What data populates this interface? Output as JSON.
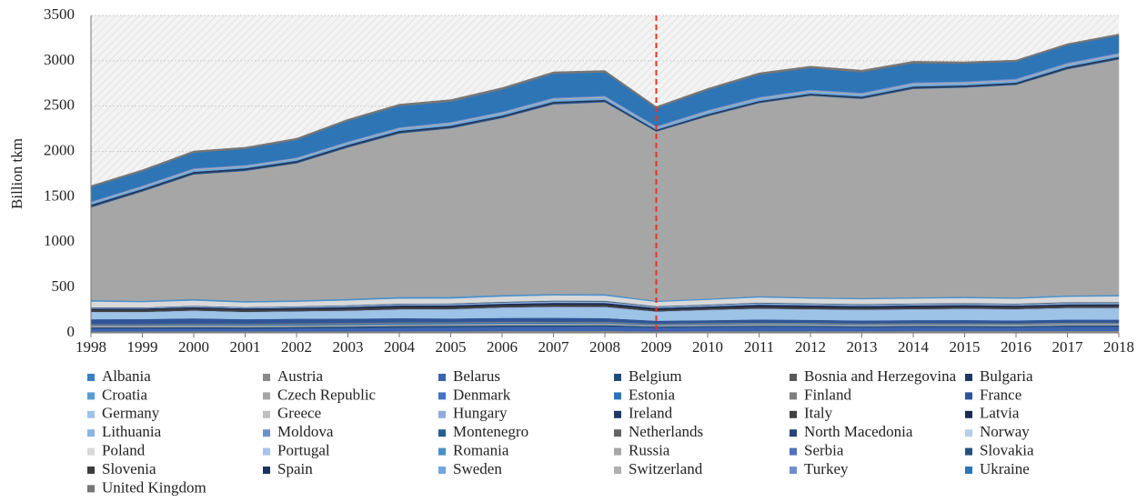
{
  "chart_data": {
    "type": "stacked_area",
    "y_label": "Billion tkm",
    "x": [
      1998,
      1999,
      2000,
      2001,
      2002,
      2003,
      2004,
      2005,
      2006,
      2007,
      2008,
      2009,
      2010,
      2011,
      2012,
      2013,
      2014,
      2015,
      2016,
      2017,
      2018
    ],
    "xlim": [
      1998,
      2018
    ],
    "xticks": [
      1998,
      1999,
      2000,
      2001,
      2002,
      2003,
      2004,
      2005,
      2006,
      2007,
      2008,
      2009,
      2010,
      2011,
      2012,
      2013,
      2014,
      2015,
      2016,
      2017,
      2018
    ],
    "ylim": [
      0,
      3500
    ],
    "yticks": [
      0,
      500,
      1000,
      1500,
      2000,
      2500,
      3000,
      3500
    ],
    "grid": true,
    "legend": "bottom",
    "vline": {
      "x": 2009,
      "color": "#e8312a"
    },
    "series": [
      {
        "name": "Albania",
        "color": "#3a7fc1",
        "values": [
          0.4,
          0.4,
          0.5,
          0.5,
          0.5,
          0.4,
          0.4,
          0.5,
          0.5,
          0.5,
          0.5,
          0.4,
          0.4,
          0.3,
          0.3,
          0.2,
          0.2,
          0.2,
          0.2,
          0.2,
          0.2
        ]
      },
      {
        "name": "Austria",
        "color": "#8a8a8a",
        "values": [
          15,
          16,
          17,
          17,
          17,
          17,
          18,
          19,
          21,
          21,
          22,
          17,
          19,
          20,
          20,
          19,
          21,
          21,
          21,
          22,
          22
        ]
      },
      {
        "name": "Belarus",
        "color": "#3b63b0",
        "values": [
          31,
          31,
          32,
          30,
          34,
          38,
          43,
          44,
          46,
          48,
          49,
          43,
          47,
          49,
          48,
          43,
          45,
          43,
          41,
          48,
          48
        ]
      },
      {
        "name": "Belgium",
        "color": "#1f4e79",
        "values": [
          8,
          8,
          8,
          8,
          8,
          8,
          9,
          9,
          9,
          8,
          8,
          6,
          6,
          7,
          7,
          7,
          7,
          7,
          7,
          7,
          7
        ]
      },
      {
        "name": "Bosnia and Herzegovina",
        "color": "#595959",
        "values": [
          0.5,
          0.5,
          1,
          1,
          1,
          1,
          1,
          1,
          1,
          1,
          1,
          1,
          1,
          1,
          1,
          1,
          1,
          1,
          1,
          1,
          1
        ]
      },
      {
        "name": "Bulgaria",
        "color": "#1f3864",
        "values": [
          6,
          5,
          5,
          5,
          5,
          5,
          5,
          5,
          5,
          5,
          5,
          3,
          3,
          3,
          3,
          3,
          3,
          4,
          4,
          4,
          4
        ]
      },
      {
        "name": "Croatia",
        "color": "#5b9bd5",
        "values": [
          2,
          2,
          2,
          2,
          2,
          2,
          2,
          3,
          3,
          3,
          3,
          2,
          2,
          2,
          2,
          2,
          2,
          2,
          2,
          2,
          2
        ]
      },
      {
        "name": "Czech Republic",
        "color": "#a5a5a5",
        "values": [
          17,
          17,
          17,
          17,
          16,
          16,
          15,
          15,
          16,
          16,
          16,
          13,
          14,
          15,
          15,
          14,
          15,
          16,
          16,
          16,
          16
        ]
      },
      {
        "name": "Denmark",
        "color": "#4472c4",
        "values": [
          2,
          2,
          2,
          2,
          2,
          2,
          2,
          2,
          2,
          2,
          2,
          2,
          2,
          2,
          2,
          2,
          2,
          2,
          2,
          2,
          2
        ]
      },
      {
        "name": "Estonia",
        "color": "#2e75b6",
        "values": [
          4,
          6,
          8,
          8,
          10,
          10,
          10,
          10,
          10,
          8,
          6,
          6,
          6,
          6,
          5,
          4,
          3,
          3,
          2,
          2,
          2
        ]
      },
      {
        "name": "Finland",
        "color": "#7f7f7f",
        "values": [
          10,
          10,
          10,
          10,
          11,
          11,
          11,
          10,
          11,
          11,
          11,
          9,
          10,
          9,
          9,
          10,
          10,
          9,
          10,
          10,
          10
        ]
      },
      {
        "name": "France",
        "color": "#2f5597",
        "values": [
          55,
          55,
          58,
          51,
          50,
          47,
          46,
          41,
          41,
          43,
          40,
          32,
          30,
          34,
          32,
          32,
          32,
          34,
          32,
          33,
          32
        ]
      },
      {
        "name": "Germany",
        "color": "#9dc3e6",
        "values": [
          74,
          72,
          80,
          74,
          76,
          82,
          91,
          95,
          107,
          114,
          116,
          96,
          107,
          113,
          110,
          112,
          112,
          116,
          116,
          120,
          121
        ]
      },
      {
        "name": "Greece",
        "color": "#bfbfbf",
        "values": [
          0.4,
          0.4,
          0.4,
          0.4,
          0.4,
          0.4,
          0.4,
          0.6,
          0.7,
          0.8,
          0.8,
          0.6,
          0.6,
          0.3,
          0.3,
          0.3,
          0.3,
          0.3,
          0.3,
          0.4,
          0.4
        ]
      },
      {
        "name": "Hungary",
        "color": "#8faadc",
        "values": [
          8,
          8,
          8,
          8,
          8,
          8,
          9,
          9,
          10,
          10,
          10,
          8,
          9,
          9,
          9,
          10,
          10,
          11,
          11,
          11,
          11
        ]
      },
      {
        "name": "Ireland",
        "color": "#203864",
        "values": [
          0.5,
          0.5,
          0.5,
          0.5,
          0.4,
          0.4,
          0.4,
          0.3,
          0.2,
          0.1,
          0.1,
          0.1,
          0.1,
          0.1,
          0.1,
          0.1,
          0.1,
          0.1,
          0.1,
          0.1,
          0.1
        ]
      },
      {
        "name": "Italy",
        "color": "#404040",
        "values": [
          22,
          22,
          22,
          22,
          21,
          21,
          22,
          21,
          21,
          22,
          21,
          17,
          18,
          20,
          20,
          19,
          20,
          20,
          22,
          22,
          22
        ]
      },
      {
        "name": "Latvia",
        "color": "#1a2a50",
        "values": [
          12,
          13,
          13,
          14,
          15,
          17,
          18,
          19,
          17,
          18,
          19,
          19,
          17,
          21,
          21,
          19,
          20,
          18,
          15,
          15,
          16
        ]
      },
      {
        "name": "Lithuania",
        "color": "#8eb4e3",
        "values": [
          8,
          7,
          9,
          8,
          9,
          11,
          11,
          12,
          12,
          14,
          14,
          12,
          13,
          15,
          14,
          13,
          14,
          13,
          13,
          15,
          15
        ]
      },
      {
        "name": "Moldova",
        "color": "#6f8fc9",
        "values": [
          2,
          1,
          2,
          2,
          3,
          3,
          3,
          3,
          3,
          3,
          2,
          1,
          1,
          1,
          1,
          1,
          1,
          1,
          1,
          1,
          1
        ]
      },
      {
        "name": "Montenegro",
        "color": "#255e91",
        "values": [
          0.2,
          0.2,
          0.2,
          0.2,
          0.2,
          0.2,
          0.2,
          0.2,
          0.2,
          0.2,
          0.2,
          0.1,
          0.1,
          0.1,
          0.1,
          0.1,
          0.1,
          0.1,
          0.1,
          0.1,
          0.1
        ]
      },
      {
        "name": "Netherlands",
        "color": "#636363",
        "values": [
          4,
          4,
          4,
          4,
          4,
          5,
          5,
          5,
          6,
          7,
          7,
          6,
          6,
          6,
          6,
          6,
          6,
          7,
          6,
          7,
          7
        ]
      },
      {
        "name": "North Macedonia",
        "color": "#26457a",
        "values": [
          0.4,
          0.4,
          0.5,
          0.5,
          0.3,
          0.4,
          0.5,
          0.6,
          0.6,
          0.7,
          0.8,
          0.5,
          0.6,
          0.5,
          0.4,
          0.4,
          0.4,
          0.5,
          0.4,
          0.4,
          0.4
        ]
      },
      {
        "name": "Norway",
        "color": "#b4cfee",
        "values": [
          2,
          2,
          2,
          2,
          2,
          2,
          3,
          3,
          3,
          3,
          3,
          3,
          3,
          3,
          3,
          3,
          3,
          3,
          3,
          3,
          3
        ]
      },
      {
        "name": "Poland",
        "color": "#d9d9d9",
        "values": [
          61,
          55,
          54,
          47,
          47,
          50,
          52,
          50,
          54,
          54,
          52,
          44,
          48,
          53,
          49,
          50,
          50,
          51,
          50,
          55,
          59
        ]
      },
      {
        "name": "Portugal",
        "color": "#a9c4eb",
        "values": [
          2,
          2,
          2,
          2,
          2,
          2,
          2,
          2,
          2,
          2,
          3,
          2,
          2,
          2,
          2,
          2,
          2,
          2,
          2,
          3,
          3
        ]
      },
      {
        "name": "Romania",
        "color": "#4a90c8",
        "values": [
          16,
          14,
          17,
          16,
          15,
          16,
          17,
          17,
          16,
          15,
          15,
          11,
          12,
          14,
          13,
          12,
          13,
          14,
          13,
          14,
          14
        ]
      },
      {
        "name": "Russia",
        "color": "#a6a6a6",
        "values": [
          1020,
          1205,
          1373,
          1434,
          1510,
          1669,
          1802,
          1858,
          1951,
          2090,
          2116,
          1865,
          2011,
          2128,
          2222,
          2196,
          2298,
          2306,
          2344,
          2493,
          2597
        ]
      },
      {
        "name": "Serbia",
        "color": "#4f71be",
        "values": [
          3,
          2,
          2,
          3,
          3,
          3,
          4,
          4,
          4,
          4,
          4,
          3,
          3,
          3,
          3,
          3,
          3,
          3,
          3,
          3,
          3
        ]
      },
      {
        "name": "Slovakia",
        "color": "#23527c",
        "values": [
          12,
          11,
          11,
          11,
          10,
          10,
          10,
          10,
          10,
          10,
          9,
          7,
          9,
          8,
          8,
          9,
          9,
          8,
          8,
          9,
          9
        ]
      },
      {
        "name": "Slovenia",
        "color": "#3c3c3c",
        "values": [
          3,
          3,
          3,
          3,
          3,
          3,
          3,
          3,
          3,
          4,
          4,
          3,
          4,
          4,
          4,
          4,
          4,
          4,
          4,
          5,
          5
        ]
      },
      {
        "name": "Spain",
        "color": "#1c3360",
        "values": [
          12,
          12,
          12,
          12,
          12,
          12,
          12,
          12,
          11,
          11,
          10,
          7,
          8,
          8,
          9,
          9,
          10,
          10,
          10,
          11,
          10
        ]
      },
      {
        "name": "Sweden",
        "color": "#6fa8dc",
        "values": [
          19,
          19,
          20,
          19,
          19,
          20,
          21,
          22,
          22,
          23,
          23,
          20,
          24,
          23,
          22,
          21,
          22,
          21,
          21,
          21,
          22
        ]
      },
      {
        "name": "Switzerland",
        "color": "#b0b0b0",
        "values": [
          8,
          9,
          10,
          10,
          10,
          10,
          10,
          11,
          12,
          12,
          12,
          10,
          11,
          11,
          11,
          11,
          12,
          12,
          11,
          11,
          11
        ]
      },
      {
        "name": "Turkey",
        "color": "#6d8fd0",
        "values": [
          8,
          9,
          10,
          7,
          7,
          9,
          9,
          9,
          10,
          10,
          10,
          10,
          11,
          11,
          11,
          11,
          12,
          11,
          12,
          13,
          12
        ]
      },
      {
        "name": "Ukraine",
        "color": "#2e75b6",
        "values": [
          158,
          156,
          172,
          177,
          193,
          225,
          234,
          224,
          241,
          263,
          257,
          197,
          218,
          244,
          237,
          225,
          210,
          195,
          187,
          192,
          190
        ]
      },
      {
        "name": "United Kingdom",
        "color": "#767676",
        "values": [
          17,
          18,
          18,
          19,
          19,
          19,
          20,
          22,
          22,
          21,
          21,
          19,
          19,
          21,
          21,
          23,
          22,
          19,
          17,
          17,
          17
        ]
      }
    ]
  }
}
